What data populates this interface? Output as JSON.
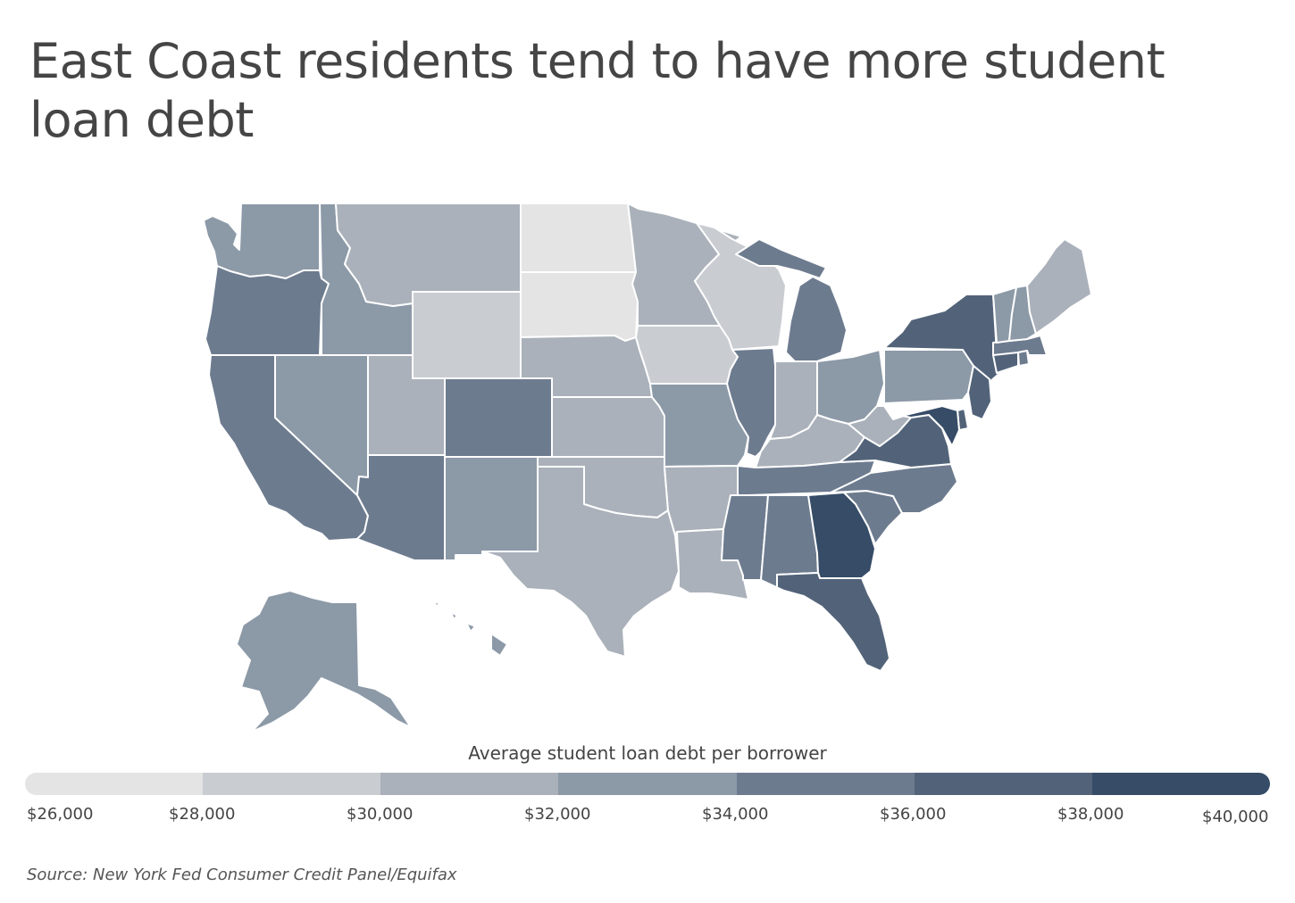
{
  "title": "East Coast residents tend to have more student loan debt",
  "legend": {
    "title": "Average student loan debt per borrower",
    "ticks": [
      "$26,000",
      "$28,000",
      "$30,000",
      "$32,000",
      "$34,000",
      "$36,000",
      "$38,000",
      "$40,000"
    ],
    "colors": [
      "#e4e4e4",
      "#c9ccd1",
      "#aab1ba",
      "#8c99a7",
      "#6d7b8f",
      "#526379",
      "#364c67"
    ]
  },
  "source": "Source: New York Fed Consumer Credit Panel/Equifax",
  "map_data": {
    "regions": [
      {
        "state": "WA",
        "bin": 3
      },
      {
        "state": "OR",
        "bin": 4
      },
      {
        "state": "CA",
        "bin": 4
      },
      {
        "state": "ID",
        "bin": 3
      },
      {
        "state": "NV",
        "bin": 3
      },
      {
        "state": "MT",
        "bin": 2
      },
      {
        "state": "WY",
        "bin": 1
      },
      {
        "state": "UT",
        "bin": 2
      },
      {
        "state": "AZ",
        "bin": 4
      },
      {
        "state": "CO",
        "bin": 4
      },
      {
        "state": "NM",
        "bin": 3
      },
      {
        "state": "ND",
        "bin": 0
      },
      {
        "state": "SD",
        "bin": 0
      },
      {
        "state": "NE",
        "bin": 2
      },
      {
        "state": "KS",
        "bin": 2
      },
      {
        "state": "OK",
        "bin": 2
      },
      {
        "state": "TX",
        "bin": 2
      },
      {
        "state": "MN",
        "bin": 2
      },
      {
        "state": "IA",
        "bin": 1
      },
      {
        "state": "MO",
        "bin": 3
      },
      {
        "state": "AR",
        "bin": 2
      },
      {
        "state": "LA",
        "bin": 2
      },
      {
        "state": "WI",
        "bin": 1
      },
      {
        "state": "IL",
        "bin": 4
      },
      {
        "state": "MI",
        "bin": 4
      },
      {
        "state": "IN",
        "bin": 2
      },
      {
        "state": "OH",
        "bin": 3
      },
      {
        "state": "KY",
        "bin": 2
      },
      {
        "state": "TN",
        "bin": 4
      },
      {
        "state": "MS",
        "bin": 4
      },
      {
        "state": "AL",
        "bin": 4
      },
      {
        "state": "GA",
        "bin": 6
      },
      {
        "state": "FL",
        "bin": 5
      },
      {
        "state": "SC",
        "bin": 4
      },
      {
        "state": "NC",
        "bin": 4
      },
      {
        "state": "VA",
        "bin": 5
      },
      {
        "state": "WV",
        "bin": 2
      },
      {
        "state": "PA",
        "bin": 3
      },
      {
        "state": "NY",
        "bin": 5
      },
      {
        "state": "NJ",
        "bin": 5
      },
      {
        "state": "DE",
        "bin": 5
      },
      {
        "state": "MD",
        "bin": 6
      },
      {
        "state": "CT",
        "bin": 5
      },
      {
        "state": "MA",
        "bin": 4
      },
      {
        "state": "RI",
        "bin": 4
      },
      {
        "state": "VT",
        "bin": 3
      },
      {
        "state": "NH",
        "bin": 3
      },
      {
        "state": "ME",
        "bin": 2
      },
      {
        "state": "AK",
        "bin": 3
      },
      {
        "state": "HI",
        "bin": 3
      }
    ]
  }
}
